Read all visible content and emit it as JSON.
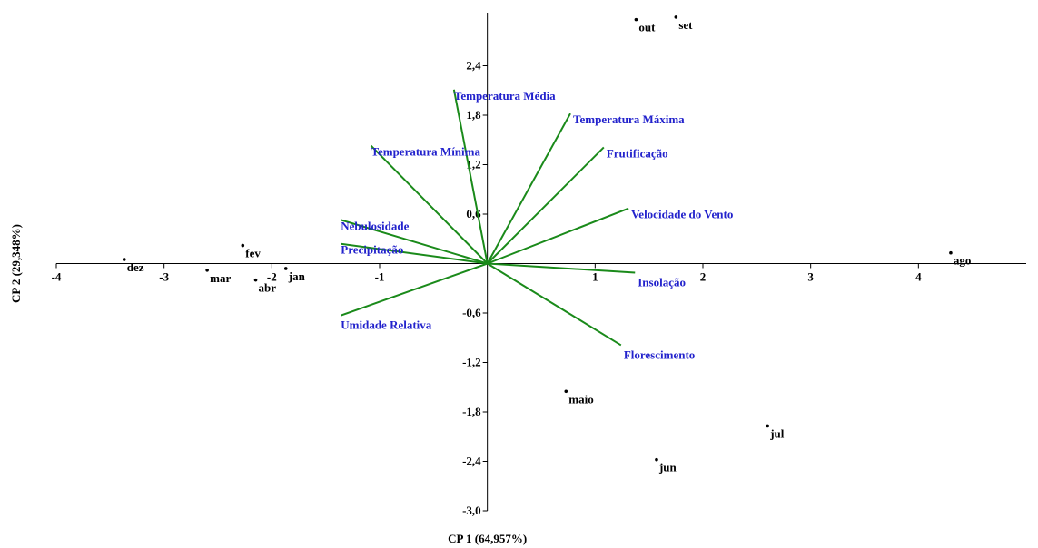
{
  "chart_data": {
    "type": "scatter",
    "subtype": "pca-biplot",
    "title": "",
    "xlabel": "CP 1 (64,957%)",
    "ylabel": "CP 2 (29,348%)",
    "xlim": [
      -4,
      5
    ],
    "ylim": [
      -3.0,
      3.0
    ],
    "grid": false,
    "x_ticks": [
      {
        "value": -4,
        "label": "-4"
      },
      {
        "value": -3,
        "label": "-3"
      },
      {
        "value": -2,
        "label": "-2"
      },
      {
        "value": -1,
        "label": "-1"
      },
      {
        "value": 1,
        "label": "1"
      },
      {
        "value": 2,
        "label": "2"
      },
      {
        "value": 3,
        "label": "3"
      },
      {
        "value": 4,
        "label": "4"
      }
    ],
    "y_ticks": [
      {
        "value": 2.4,
        "label": "2,4"
      },
      {
        "value": 1.8,
        "label": "1,8"
      },
      {
        "value": 1.2,
        "label": "1,2"
      },
      {
        "value": 0.6,
        "label": "0,6"
      },
      {
        "value": -0.6,
        "label": "-0,6"
      },
      {
        "value": -1.2,
        "label": "-1,2"
      },
      {
        "value": -1.8,
        "label": "-1,8"
      },
      {
        "value": -2.4,
        "label": "-2,4"
      },
      {
        "value": -3.0,
        "label": "-3,0"
      }
    ],
    "points": [
      {
        "label": "out",
        "x": 1.38,
        "y": 2.96
      },
      {
        "label": "set",
        "x": 1.75,
        "y": 2.99
      },
      {
        "label": "ago",
        "x": 4.3,
        "y": 0.13
      },
      {
        "label": "dez",
        "x": -3.37,
        "y": 0.05
      },
      {
        "label": "fev",
        "x": -2.27,
        "y": 0.22
      },
      {
        "label": "mar",
        "x": -2.6,
        "y": -0.08
      },
      {
        "label": "abr",
        "x": -2.15,
        "y": -0.2
      },
      {
        "label": "jan",
        "x": -1.87,
        "y": -0.06
      },
      {
        "label": "maio",
        "x": 0.73,
        "y": -1.55
      },
      {
        "label": "jul",
        "x": 2.6,
        "y": -1.97
      },
      {
        "label": "jun",
        "x": 1.57,
        "y": -2.38
      }
    ],
    "vectors": [
      {
        "label": "Temperatura Média",
        "x": -0.31,
        "y": 2.11
      },
      {
        "label": "Temperatura Máxima",
        "x": 0.77,
        "y": 1.82
      },
      {
        "label": "Temperatura Mínima",
        "x": -1.08,
        "y": 1.43
      },
      {
        "label": "Frutificação",
        "x": 1.08,
        "y": 1.41
      },
      {
        "label": "Velocidade do Vento",
        "x": 1.31,
        "y": 0.67
      },
      {
        "label": "Nebulosidade",
        "x": -1.36,
        "y": 0.53
      },
      {
        "label": "Precipitação",
        "x": -1.36,
        "y": 0.24
      },
      {
        "label": "Insolação",
        "x": 1.37,
        "y": -0.11
      },
      {
        "label": "Umidade Relativa",
        "x": -1.36,
        "y": -0.63
      },
      {
        "label": "Florescimento",
        "x": 1.24,
        "y": -0.99
      }
    ],
    "colors": {
      "vector_line": "#1a8a1a",
      "vector_label": "#2222cc",
      "point": "#000000"
    }
  }
}
